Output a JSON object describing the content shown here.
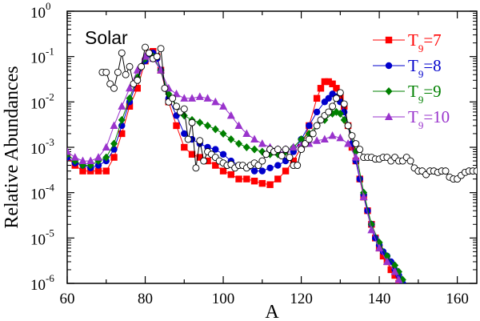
{
  "chart_data": {
    "type": "line",
    "panel_label": "Solar",
    "xlabel": "A",
    "ylabel": "Relative Abundances",
    "xlim": [
      60,
      165
    ],
    "ylim_log10": [
      -6,
      0
    ],
    "yscale": "log",
    "x_ticks": [
      "60",
      "80",
      "100",
      "120",
      "140",
      "160"
    ],
    "y_ticks": [
      {
        "base": "10",
        "exp": "0"
      },
      {
        "base": "10",
        "exp": "-1"
      },
      {
        "base": "10",
        "exp": "-2"
      },
      {
        "base": "10",
        "exp": "-3"
      },
      {
        "base": "10",
        "exp": "-4"
      },
      {
        "base": "10",
        "exp": "-5"
      },
      {
        "base": "10",
        "exp": "-6"
      }
    ],
    "legend_position": "top-right",
    "series": [
      {
        "name": "Solar",
        "legend": false,
        "color": "#000000",
        "marker": "open-circle",
        "x": [
          69,
          70,
          71,
          72,
          73,
          74,
          75,
          76,
          77,
          78,
          79,
          80,
          81,
          82,
          83,
          84,
          85,
          86,
          87,
          88,
          89,
          90,
          91,
          92,
          93,
          94,
          95,
          96,
          97,
          98,
          99,
          100,
          101,
          102,
          103,
          104,
          105,
          106,
          107,
          108,
          109,
          110,
          111,
          112,
          113,
          114,
          115,
          116,
          117,
          118,
          119,
          120,
          121,
          122,
          123,
          124,
          125,
          126,
          127,
          128,
          129,
          130,
          131,
          132,
          133,
          134,
          135,
          136,
          137,
          138,
          139,
          140,
          141,
          142,
          143,
          144,
          145,
          146,
          147,
          148,
          149,
          150,
          151,
          152,
          153,
          154,
          155,
          156,
          157,
          158,
          159,
          160,
          161,
          162,
          163,
          164,
          165
        ],
        "y": [
          0.045,
          0.045,
          0.025,
          0.02,
          0.045,
          0.12,
          0.04,
          0.06,
          0.025,
          0.03,
          0.06,
          0.16,
          0.12,
          0.09,
          0.1,
          0.15,
          0.02,
          0.01,
          0.012,
          0.008,
          0.006,
          0.007,
          0.0015,
          0.0035,
          0.00035,
          0.0014,
          0.0005,
          0.0008,
          0.0007,
          0.0006,
          0.0005,
          0.00045,
          0.0004,
          0.00042,
          0.00035,
          0.0004,
          0.0004,
          0.00035,
          0.0004,
          0.00045,
          0.0004,
          0.0005,
          0.0007,
          0.0009,
          0.0008,
          0.0009,
          0.00065,
          0.0009,
          0.0006,
          0.0004,
          0.0004,
          0.0009,
          0.0012,
          0.0015,
          0.002,
          0.003,
          0.004,
          0.005,
          0.006,
          0.008,
          0.012,
          0.016,
          0.009,
          0.003,
          0.0018,
          0.0012,
          0.0009,
          0.0006,
          0.0006,
          0.0006,
          0.00055,
          0.00055,
          0.0006,
          0.0006,
          0.0005,
          0.0006,
          0.0005,
          0.0005,
          0.0006,
          0.0005,
          0.00035,
          0.0003,
          0.0003,
          0.00025,
          0.0003,
          0.0003,
          0.00028,
          0.0003,
          0.0003,
          0.00022,
          0.0002,
          0.0002,
          0.00024,
          0.00028,
          0.0003,
          0.0003,
          0.0003
        ]
      },
      {
        "name": "T9=7",
        "legend": true,
        "label_main": "T",
        "label_sub": "9",
        "label_value": "=7",
        "color": "#ff0000",
        "marker": "square",
        "x": [
          60,
          62,
          64,
          66,
          68,
          70,
          72,
          74,
          76,
          78,
          80,
          81,
          82,
          83,
          84,
          86,
          88,
          90,
          92,
          94,
          96,
          98,
          100,
          102,
          104,
          106,
          108,
          110,
          112,
          114,
          116,
          118,
          120,
          122,
          124,
          125,
          126,
          127,
          128,
          129,
          130,
          131,
          132,
          133,
          134,
          135,
          136,
          137,
          138,
          139,
          140,
          141,
          142,
          143,
          144,
          145,
          146
        ],
        "y": [
          0.0006,
          0.0004,
          0.0003,
          0.0003,
          0.0003,
          0.0003,
          0.0006,
          0.002,
          0.008,
          0.02,
          0.08,
          0.12,
          0.13,
          0.1,
          0.05,
          0.01,
          0.003,
          0.001,
          0.0007,
          0.0006,
          0.0005,
          0.0004,
          0.0003,
          0.00025,
          0.0002,
          0.0002,
          0.00018,
          0.00016,
          0.00015,
          0.0002,
          0.0003,
          0.0005,
          0.001,
          0.003,
          0.012,
          0.02,
          0.028,
          0.028,
          0.025,
          0.02,
          0.013,
          0.008,
          0.003,
          0.001,
          0.0005,
          0.0002,
          8e-05,
          4e-05,
          2e-05,
          1e-05,
          6e-06,
          4e-06,
          3e-06,
          2e-06,
          1.5e-06,
          1e-06,
          8e-07
        ]
      },
      {
        "name": "T9=8",
        "legend": true,
        "label_main": "T",
        "label_sub": "9",
        "label_value": "=8",
        "color": "#0000cc",
        "marker": "circle",
        "x": [
          60,
          62,
          64,
          66,
          68,
          70,
          72,
          74,
          76,
          78,
          80,
          81,
          82,
          83,
          84,
          86,
          88,
          90,
          92,
          94,
          96,
          98,
          100,
          102,
          104,
          106,
          108,
          110,
          112,
          114,
          116,
          118,
          120,
          122,
          124,
          126,
          127,
          128,
          129,
          130,
          131,
          132,
          133,
          134,
          135,
          136,
          137,
          138,
          139,
          140,
          141,
          142,
          143,
          144,
          145,
          146,
          147
        ],
        "y": [
          0.0006,
          0.00045,
          0.0004,
          0.00035,
          0.0004,
          0.0005,
          0.0009,
          0.003,
          0.01,
          0.03,
          0.08,
          0.11,
          0.12,
          0.09,
          0.05,
          0.012,
          0.005,
          0.002,
          0.0015,
          0.0012,
          0.001,
          0.0009,
          0.0007,
          0.0005,
          0.0004,
          0.00035,
          0.0003,
          0.0003,
          0.00035,
          0.0004,
          0.0005,
          0.0008,
          0.0015,
          0.003,
          0.006,
          0.01,
          0.012,
          0.015,
          0.013,
          0.01,
          0.006,
          0.003,
          0.0012,
          0.0005,
          0.0002,
          9e-05,
          4e-05,
          2e-05,
          1e-05,
          7e-06,
          5e-06,
          4e-06,
          3e-06,
          2e-06,
          1.5e-06,
          1e-06,
          8e-07
        ]
      },
      {
        "name": "T9=9",
        "legend": true,
        "label_main": "T",
        "label_sub": "9",
        "label_value": "=9",
        "color": "#008000",
        "marker": "diamond",
        "x": [
          60,
          62,
          64,
          66,
          68,
          70,
          72,
          74,
          76,
          78,
          80,
          82,
          84,
          86,
          88,
          90,
          92,
          94,
          96,
          98,
          100,
          102,
          104,
          106,
          108,
          110,
          112,
          114,
          116,
          118,
          120,
          122,
          124,
          126,
          128,
          129,
          130,
          131,
          132,
          134,
          136,
          138,
          140,
          142,
          144,
          145,
          146
        ],
        "y": [
          0.0007,
          0.0005,
          0.0004,
          0.0004,
          0.0005,
          0.0006,
          0.0012,
          0.004,
          0.012,
          0.035,
          0.09,
          0.1,
          0.05,
          0.015,
          0.008,
          0.005,
          0.004,
          0.0035,
          0.003,
          0.0025,
          0.002,
          0.0015,
          0.0012,
          0.001,
          0.0009,
          0.0008,
          0.0007,
          0.0007,
          0.0008,
          0.001,
          0.0015,
          0.002,
          0.003,
          0.004,
          0.0055,
          0.006,
          0.0055,
          0.004,
          0.003,
          0.0008,
          0.0001,
          2e-05,
          8e-06,
          4e-06,
          2.5e-06,
          1.8e-06,
          1.2e-06
        ]
      },
      {
        "name": "T9=10",
        "legend": true,
        "label_main": "T",
        "label_sub": "9",
        "label_value": "=10",
        "color": "#9933cc",
        "marker": "triangle",
        "x": [
          60,
          62,
          64,
          66,
          68,
          70,
          72,
          74,
          76,
          78,
          80,
          82,
          84,
          86,
          88,
          90,
          92,
          94,
          96,
          98,
          100,
          102,
          104,
          106,
          108,
          110,
          112,
          114,
          116,
          118,
          120,
          122,
          124,
          126,
          128,
          130,
          132,
          134,
          136,
          138,
          140,
          142,
          144,
          145
        ],
        "y": [
          0.0008,
          0.0006,
          0.0005,
          0.0005,
          0.0006,
          0.001,
          0.003,
          0.008,
          0.02,
          0.05,
          0.1,
          0.09,
          0.05,
          0.02,
          0.015,
          0.012,
          0.012,
          0.013,
          0.012,
          0.01,
          0.008,
          0.005,
          0.003,
          0.002,
          0.0015,
          0.0012,
          0.001,
          0.0009,
          0.0009,
          0.001,
          0.0011,
          0.0012,
          0.0014,
          0.0015,
          0.0018,
          0.0016,
          0.0012,
          0.0006,
          8e-05,
          1.5e-05,
          6e-06,
          3e-06,
          1.8e-06,
          1.2e-06
        ]
      }
    ]
  }
}
